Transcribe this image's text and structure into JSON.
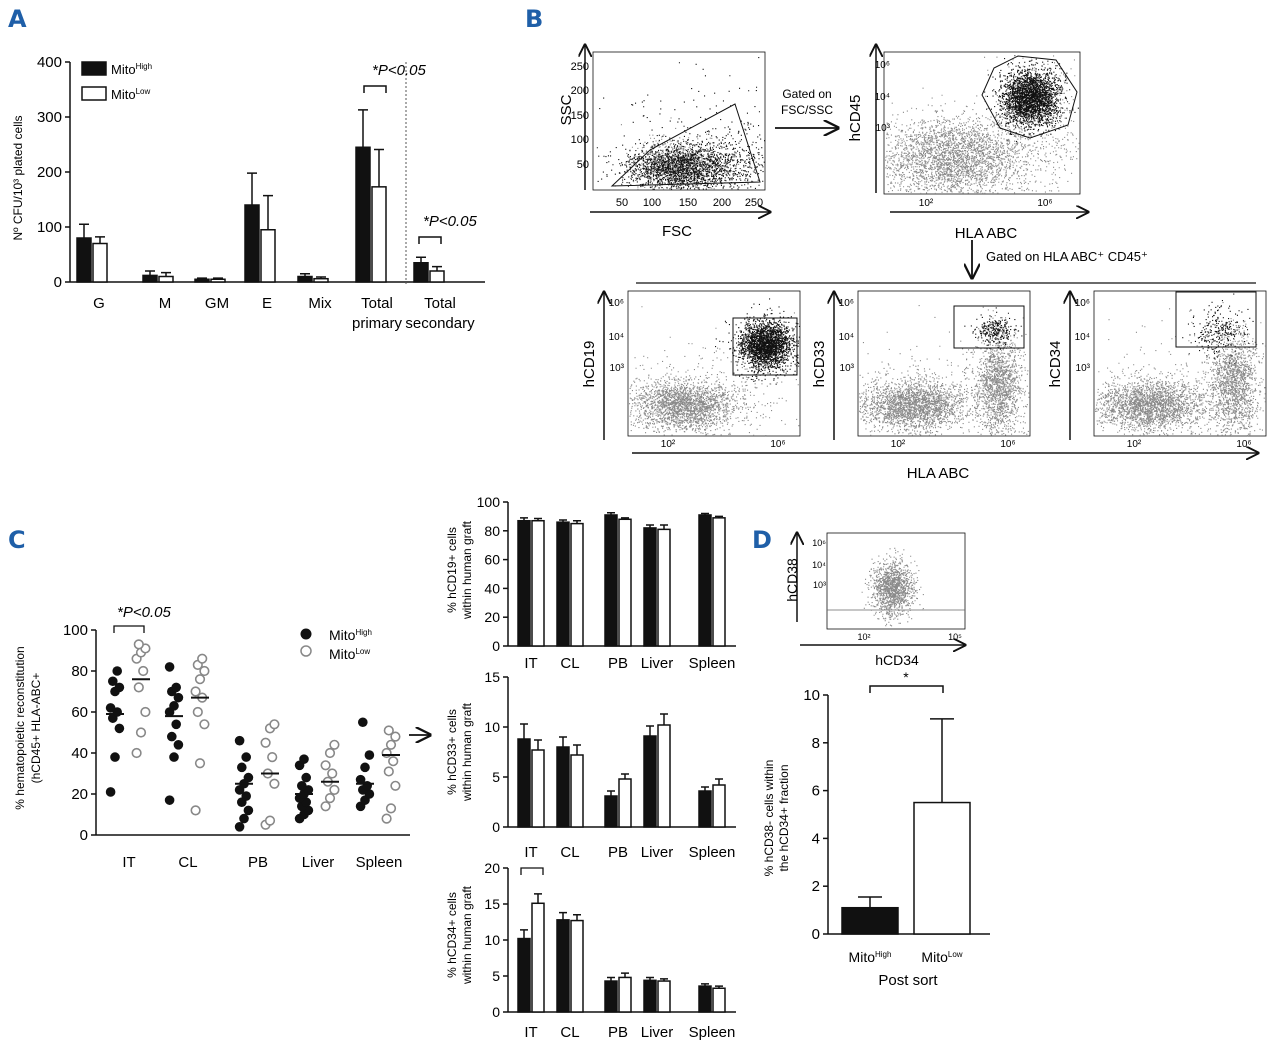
{
  "panel_letters": {
    "a": "A",
    "b": "B",
    "c": "C",
    "d": "D"
  },
  "colors": {
    "dark": "#111111",
    "gray": "#8a8a8a",
    "blue": "#1f5fa8",
    "white": "#ffffff"
  },
  "panel_a": {
    "ylabel": "Nº CFU/10³ plated cells",
    "ticks": [
      "0",
      "100",
      "200",
      "300",
      "400"
    ],
    "legend": [
      {
        "base": "Mito",
        "sup": "High",
        "fill": "#111111"
      },
      {
        "base": "Mito",
        "sup": "Low",
        "fill": "#ffffff"
      }
    ],
    "sig1": "*P<0.05",
    "sig2": "*P<0.05",
    "total_primary": [
      "Total",
      "primary"
    ],
    "total_secondary": [
      "Total",
      "secondary"
    ]
  },
  "panel_b": {
    "ssc": "SSC",
    "fsc": "FSC",
    "ssc_ticks": [
      "250",
      "200",
      "150",
      "100",
      "50"
    ],
    "fsc_ticks": [
      "50",
      "100",
      "150",
      "200",
      "250"
    ],
    "gated1": [
      "Gated on",
      "FSC/SSC"
    ],
    "hcd45": "hCD45",
    "hla": "HLA ABC",
    "exp_ticks": [
      "10⁶",
      "10⁴",
      "10³"
    ],
    "x_exp": [
      "10²",
      "10⁶"
    ],
    "gated2": "Gated on HLA ABC⁺ CD45⁺",
    "sub_ylabels": [
      "hCD19",
      "hCD33",
      "hCD34"
    ],
    "hla_bottom": "HLA ABC"
  },
  "panel_c": {
    "ylabel1": "% hematopoietic reconstitution",
    "ylabel2": "(hCD45+ HLA-ABC+",
    "ticks": [
      "0",
      "20",
      "40",
      "60",
      "80",
      "100"
    ],
    "legend": [
      {
        "base": "Mito",
        "sup": "High"
      },
      {
        "base": "Mito",
        "sup": "Low"
      }
    ],
    "sig": "*P<0.05",
    "bar_ylabels": [
      [
        "% hCD19+ cells",
        "within human graft"
      ],
      [
        "% hCD33+ cells",
        "within human graft"
      ],
      [
        "% hCD34+ cells",
        "within human graft"
      ]
    ],
    "bar_ticks": [
      [
        "0",
        "20",
        "40",
        "60",
        "80",
        "100"
      ],
      [
        "0",
        "5",
        "10",
        "15"
      ],
      [
        "0",
        "5",
        "10",
        "15",
        "20"
      ]
    ]
  },
  "panel_d": {
    "flow_ylabel": "hCD38",
    "flow_xlabel": "hCD34",
    "flow_yticks": [
      "10⁶",
      "10⁴",
      "10³"
    ],
    "flow_xticks": [
      "10²",
      "10⁵"
    ],
    "ylabel1": "% hCD38- cells within",
    "ylabel2": "the hCD34+ fraction",
    "ticks": [
      "0",
      "2",
      "4",
      "6",
      "8",
      "10"
    ],
    "star": "*",
    "xlabel": "Post sort"
  },
  "chart_data": [
    {
      "id": "A",
      "type": "bar",
      "title": "",
      "ylabel": "Nº CFU/10³ plated cells",
      "ylim": [
        0,
        400
      ],
      "categories": [
        "G",
        "M",
        "GM",
        "E",
        "Mix",
        "Total primary",
        "Total secondary"
      ],
      "series": [
        {
          "name": "MitoHigh",
          "values": [
            80,
            12,
            5,
            140,
            10,
            245,
            35
          ],
          "errors": [
            25,
            8,
            2,
            58,
            5,
            68,
            10
          ]
        },
        {
          "name": "MitoLow",
          "values": [
            70,
            10,
            5,
            95,
            6,
            173,
            20
          ],
          "errors": [
            12,
            7,
            2,
            62,
            3,
            68,
            8
          ]
        }
      ]
    },
    {
      "id": "C-scatter",
      "type": "scatter",
      "ylim": [
        0,
        100
      ],
      "ylabel": "% hematopoietic reconstitution (hCD45+ HLA-ABC+",
      "categories": [
        "IT",
        "CL",
        "PB",
        "Liver",
        "Spleen"
      ],
      "series": [
        {
          "name": "MitoHigh",
          "means": [
            59,
            58,
            25,
            20,
            25
          ],
          "points": [
            [
              21,
              38,
              52,
              57,
              60,
              62,
              70,
              72,
              75,
              80
            ],
            [
              17,
              38,
              44,
              48,
              54,
              60,
              63,
              67,
              70,
              72,
              82
            ],
            [
              4,
              8,
              12,
              16,
              19,
              22,
              25,
              28,
              33,
              38,
              46
            ],
            [
              8,
              10,
              12,
              14,
              16,
              18,
              20,
              22,
              24,
              28,
              34,
              37
            ],
            [
              14,
              17,
              20,
              22,
              24,
              27,
              33,
              39,
              55
            ]
          ]
        },
        {
          "name": "MitoLow",
          "means": [
            76,
            67,
            30,
            26,
            39
          ],
          "points": [
            [
              40,
              50,
              60,
              72,
              80,
              86,
              89,
              91,
              93
            ],
            [
              12,
              35,
              54,
              60,
              67,
              70,
              76,
              80,
              83,
              86
            ],
            [
              5,
              7,
              25,
              30,
              38,
              45,
              52,
              54
            ],
            [
              14,
              18,
              22,
              26,
              30,
              34,
              40,
              44
            ],
            [
              8,
              13,
              24,
              31,
              36,
              40,
              44,
              48,
              51
            ]
          ]
        }
      ]
    },
    {
      "id": "C-hCD19",
      "type": "bar",
      "ylim": [
        0,
        100
      ],
      "ylabel": "% hCD19+ cells within human graft",
      "categories": [
        "IT",
        "CL",
        "PB",
        "Liver",
        "Spleen"
      ],
      "series": [
        {
          "name": "MitoHigh",
          "values": [
            87,
            86,
            91,
            82,
            91
          ],
          "errors": [
            2,
            1.5,
            1.5,
            2,
            1
          ]
        },
        {
          "name": "MitoLow",
          "values": [
            87,
            85,
            88,
            81,
            89
          ],
          "errors": [
            1.5,
            2,
            1,
            3,
            1
          ]
        }
      ]
    },
    {
      "id": "C-hCD33",
      "type": "bar",
      "ylim": [
        0,
        15
      ],
      "ylabel": "% hCD33+ cells within human graft",
      "categories": [
        "IT",
        "CL",
        "PB",
        "Liver",
        "Spleen"
      ],
      "series": [
        {
          "name": "MitoHigh",
          "values": [
            8.8,
            8.0,
            3.1,
            9.1,
            3.6
          ],
          "errors": [
            1.5,
            1.0,
            0.5,
            1.0,
            0.4
          ]
        },
        {
          "name": "MitoLow",
          "values": [
            7.7,
            7.2,
            4.8,
            10.2,
            4.2
          ],
          "errors": [
            1.0,
            1.0,
            0.5,
            1.1,
            0.6
          ]
        }
      ]
    },
    {
      "id": "C-hCD34",
      "type": "bar",
      "ylim": [
        0,
        20
      ],
      "ylabel": "% hCD34+ cells within human graft",
      "categories": [
        "IT",
        "CL",
        "PB",
        "Liver",
        "Spleen"
      ],
      "series": [
        {
          "name": "MitoHigh",
          "values": [
            10.2,
            12.8,
            4.3,
            4.4,
            3.6
          ],
          "errors": [
            1.2,
            1.0,
            0.5,
            0.4,
            0.3
          ]
        },
        {
          "name": "MitoLow",
          "values": [
            15.1,
            12.7,
            4.8,
            4.3,
            3.3
          ],
          "errors": [
            1.3,
            0.8,
            0.6,
            0.3,
            0.3
          ]
        }
      ]
    },
    {
      "id": "D",
      "type": "bar",
      "ylim": [
        0,
        10
      ],
      "ylabel": "% hCD38- cells within the hCD34+ fraction",
      "xlabel": "Post sort",
      "categories": [
        "MitoHigh",
        "MitoLow"
      ],
      "series": [
        {
          "name": "Post sort",
          "values": [
            1.1,
            5.5
          ],
          "errors": [
            0.45,
            3.5
          ]
        }
      ]
    }
  ]
}
